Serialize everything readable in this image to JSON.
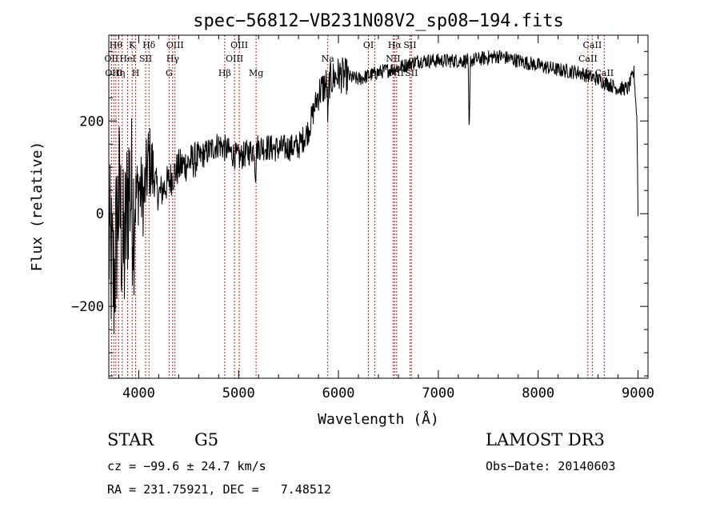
{
  "chart_data": {
    "type": "line",
    "title": "spec−56812−VB231N08V2_sp08−194.fits",
    "xlabel": "Wavelength (Å)",
    "ylabel": "Flux (relative)",
    "xlim": [
      3700,
      9100
    ],
    "ylim": [
      -355,
      385
    ],
    "x_ticks": [
      4000,
      5000,
      6000,
      7000,
      8000,
      9000
    ],
    "y_ticks": [
      -200,
      0,
      200
    ],
    "x_tick_labels": [
      "4000",
      "5000",
      "6000",
      "7000",
      "8000",
      "9000"
    ],
    "y_tick_labels": [
      "−200",
      "0",
      "200"
    ],
    "spectrum_keypoints": [
      [
        3700,
        -60
      ],
      [
        3750,
        -150
      ],
      [
        3800,
        40
      ],
      [
        3850,
        -100
      ],
      [
        3900,
        70
      ],
      [
        3950,
        10
      ],
      [
        4000,
        60
      ],
      [
        4050,
        30
      ],
      [
        4100,
        120
      ],
      [
        4200,
        40
      ],
      [
        4300,
        70
      ],
      [
        4400,
        100
      ],
      [
        4600,
        120
      ],
      [
        4800,
        150
      ],
      [
        5000,
        120
      ],
      [
        5200,
        145
      ],
      [
        5400,
        140
      ],
      [
        5600,
        145
      ],
      [
        5700,
        180
      ],
      [
        5800,
        260
      ],
      [
        5900,
        285
      ],
      [
        6000,
        300
      ],
      [
        6200,
        290
      ],
      [
        6400,
        305
      ],
      [
        6600,
        315
      ],
      [
        6800,
        330
      ],
      [
        7000,
        330
      ],
      [
        7300,
        330
      ],
      [
        7600,
        340
      ],
      [
        7800,
        330
      ],
      [
        8000,
        320
      ],
      [
        8200,
        310
      ],
      [
        8400,
        305
      ],
      [
        8600,
        290
      ],
      [
        8800,
        270
      ],
      [
        8900,
        270
      ],
      [
        8960,
        305
      ],
      [
        8990,
        200
      ],
      [
        9000,
        0
      ]
    ],
    "absorption_features": [
      {
        "x": 7310,
        "depth": 170
      },
      {
        "x": 5895,
        "depth": 90
      },
      {
        "x": 5170,
        "depth": 60
      }
    ],
    "emission_lines": [
      {
        "x": 3727,
        "label": "OII",
        "row": 1
      },
      {
        "x": 3750,
        "label": "OIII",
        "row": 2
      },
      {
        "x": 3771,
        "label": "Hθ",
        "row": 0
      },
      {
        "x": 3798,
        "label": "Hη",
        "row": 2
      },
      {
        "x": 3835,
        "label": "",
        "row": 0
      },
      {
        "x": 3889,
        "label": "HeI",
        "row": 1
      },
      {
        "x": 3934,
        "label": "K",
        "row": 0
      },
      {
        "x": 3969,
        "label": "H",
        "row": 2
      },
      {
        "x": 4069,
        "label": "SII",
        "row": 1
      },
      {
        "x": 4102,
        "label": "Hδ",
        "row": 0
      },
      {
        "x": 4304,
        "label": "G",
        "row": 2
      },
      {
        "x": 4340,
        "label": "Hγ",
        "row": 1
      },
      {
        "x": 4363,
        "label": "OIII",
        "row": 0
      },
      {
        "x": 4861,
        "label": "Hβ",
        "row": 2
      },
      {
        "x": 4959,
        "label": "OIII",
        "row": 1
      },
      {
        "x": 5007,
        "label": "OIII",
        "row": 0
      },
      {
        "x": 5175,
        "label": "Mg",
        "row": 2
      },
      {
        "x": 5893,
        "label": "Na",
        "row": 1
      },
      {
        "x": 6300,
        "label": "OI",
        "row": 0
      },
      {
        "x": 6364,
        "label": "OI",
        "row": 2
      },
      {
        "x": 6548,
        "label": "NII",
        "row": 1
      },
      {
        "x": 6563,
        "label": "Hα",
        "row": 0
      },
      {
        "x": 6583,
        "label": "NII",
        "row": 2
      },
      {
        "x": 6716,
        "label": "SII",
        "row": 0
      },
      {
        "x": 6731,
        "label": "SII",
        "row": 2
      },
      {
        "x": 8498,
        "label": "CaII",
        "row": 1
      },
      {
        "x": 8542,
        "label": "CaII",
        "row": 0
      },
      {
        "x": 8662,
        "label": "CaII",
        "row": 2
      }
    ],
    "line_color": "#000000",
    "marker_color": "#b02020"
  },
  "info": {
    "object_class": "STAR",
    "subclass": "G5",
    "survey": "LAMOST DR3",
    "cz": "cz = −99.6 ± 24.7 km/s",
    "obs_date": "Obs−Date: 20140603",
    "coords": "RA = 231.75921, DEC =   7.48512"
  }
}
